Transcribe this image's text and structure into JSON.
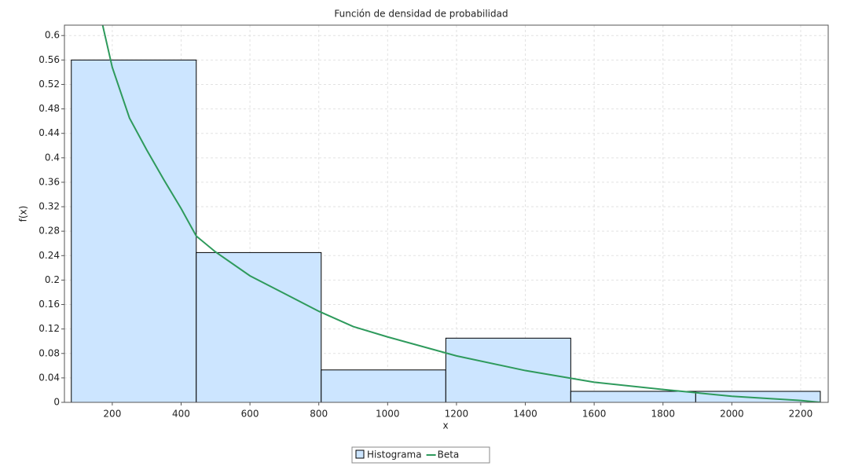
{
  "chart_data": {
    "type": "histogram",
    "title": "Función de densidad de probabilidad",
    "x_label": "x",
    "y_label": "f(x)",
    "xlim": [
      61,
      2280
    ],
    "ylim": [
      0,
      0.617
    ],
    "xticks": [
      200,
      400,
      600,
      800,
      1000,
      1200,
      1400,
      1600,
      1800,
      2000,
      2200
    ],
    "yticks": [
      0,
      0.04,
      0.08,
      0.12,
      0.16,
      0.2,
      0.24,
      0.28,
      0.32,
      0.36,
      0.4,
      0.44,
      0.48,
      0.52,
      0.56,
      0.6
    ],
    "grid": true,
    "bins": [
      81,
      444,
      807,
      1169,
      1532,
      1895,
      2257
    ],
    "series": [
      {
        "name": "Histograma",
        "type": "histogram",
        "color": "#cce5ff",
        "values": [
          0.56,
          0.245,
          0.053,
          0.105,
          0.018,
          0.018
        ]
      },
      {
        "name": "Beta",
        "type": "line",
        "color": "#2e9a5c",
        "x": [
          172,
          200,
          250,
          300,
          350,
          400,
          444,
          500,
          600,
          700,
          800,
          900,
          1000,
          1200,
          1400,
          1600,
          1800,
          2000,
          2200,
          2257
        ],
        "values": [
          0.617,
          0.548,
          0.465,
          0.413,
          0.364,
          0.317,
          0.272,
          0.246,
          0.207,
          0.178,
          0.149,
          0.124,
          0.107,
          0.076,
          0.052,
          0.033,
          0.021,
          0.01,
          0.003,
          0
        ]
      }
    ]
  }
}
